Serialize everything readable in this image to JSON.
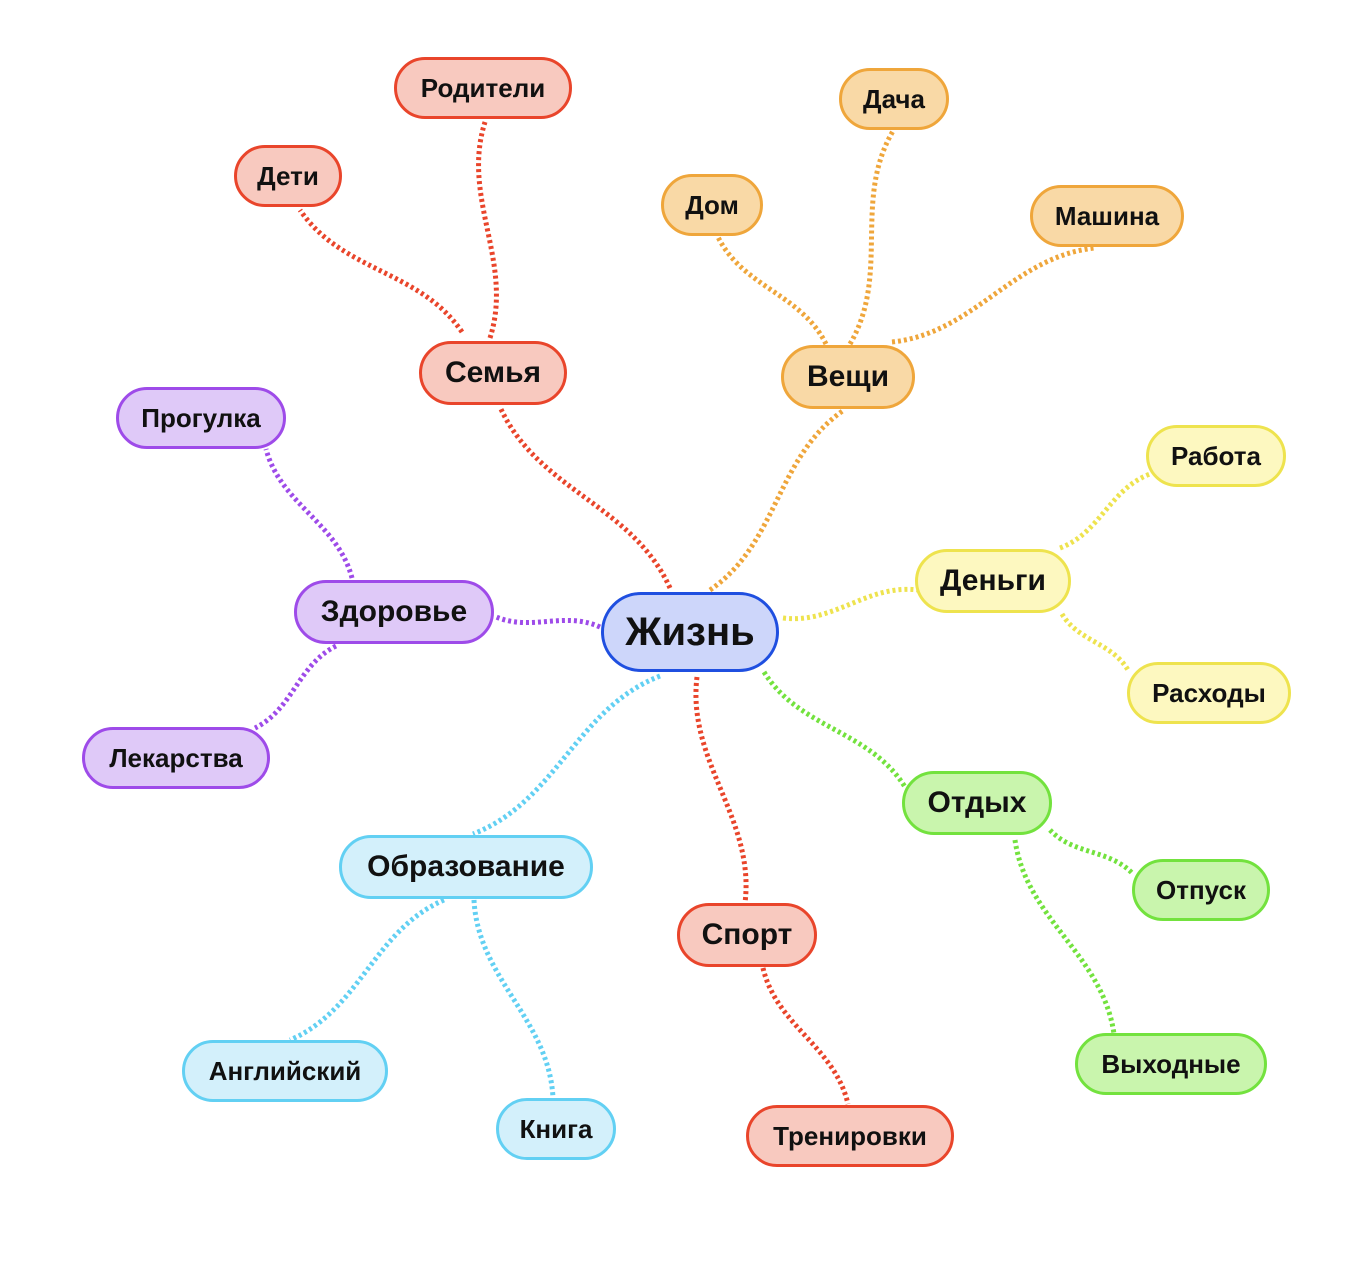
{
  "colors": {
    "center": {
      "fill": "#cdd6fa",
      "stroke": "#1f4fe0"
    },
    "family": {
      "fill": "#f8c9bf",
      "stroke": "#e9452b"
    },
    "things": {
      "fill": "#f9d9a6",
      "stroke": "#efa63b"
    },
    "money": {
      "fill": "#fdf8c0",
      "stroke": "#eee34e"
    },
    "rest": {
      "fill": "#c9f5ad",
      "stroke": "#73e23e"
    },
    "sport": {
      "fill": "#f8c9bf",
      "stroke": "#e9452b"
    },
    "education": {
      "fill": "#d3f0fb",
      "stroke": "#62d0f3"
    },
    "health": {
      "fill": "#dfc9f8",
      "stroke": "#9e4be9"
    }
  },
  "mindmap": {
    "center": {
      "label": "Жизнь",
      "icon": "none"
    },
    "branches": [
      {
        "key": "family",
        "label": "Семья",
        "children": [
          "Дети",
          "Родители"
        ]
      },
      {
        "key": "things",
        "label": "Вещи",
        "children": [
          "Дом",
          "Дача",
          "Машина"
        ]
      },
      {
        "key": "money",
        "label": "Деньги",
        "children": [
          "Работа",
          "Расходы"
        ]
      },
      {
        "key": "rest",
        "label": "Отдых",
        "children": [
          "Отпуск",
          "Выходные"
        ]
      },
      {
        "key": "sport",
        "label": "Спорт",
        "children": [
          "Тренировки"
        ]
      },
      {
        "key": "education",
        "label": "Образование",
        "children": [
          "Английский",
          "Книга"
        ]
      },
      {
        "key": "health",
        "label": "Здоровье",
        "children": [
          "Прогулка",
          "Лекарства"
        ]
      }
    ]
  }
}
